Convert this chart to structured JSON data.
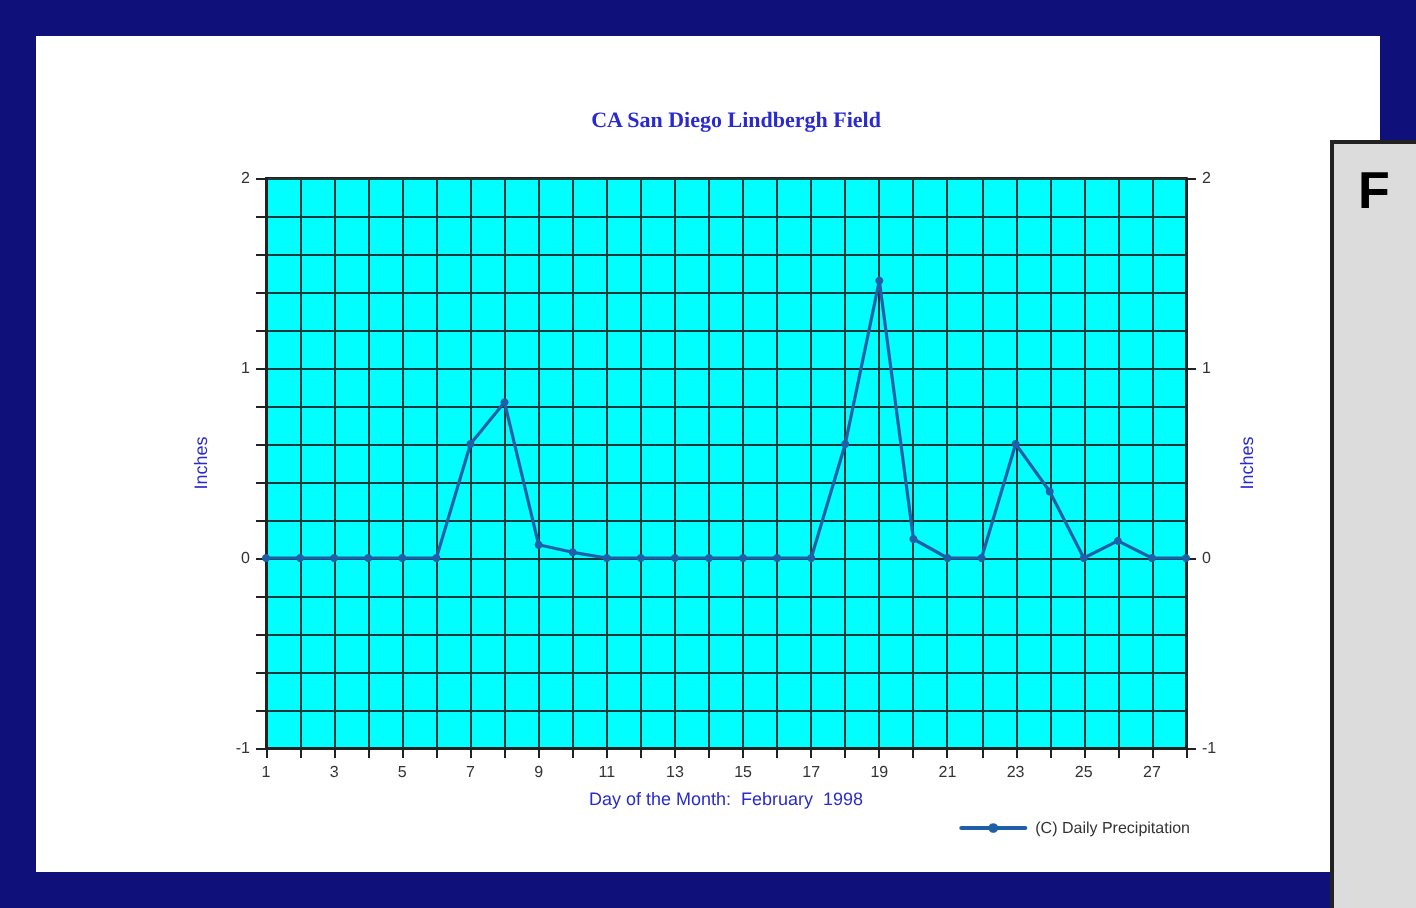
{
  "chart_data": {
    "type": "line",
    "title": "CA San Diego Lindbergh Field",
    "xlabel": "Day of the Month:  February  1998",
    "ylabel": "Inches",
    "y2label": "Inches",
    "x": [
      1,
      2,
      3,
      4,
      5,
      6,
      7,
      8,
      9,
      10,
      11,
      12,
      13,
      14,
      15,
      16,
      17,
      18,
      19,
      20,
      21,
      22,
      23,
      24,
      25,
      26,
      27,
      28
    ],
    "series": [
      {
        "name": "(C) Daily Precipitation",
        "color": "#1f5fa8",
        "values": [
          0,
          0,
          0,
          0,
          0,
          0,
          0.6,
          0.82,
          0.07,
          0.03,
          0,
          0,
          0,
          0,
          0,
          0,
          0,
          0.6,
          1.46,
          0.1,
          0,
          0,
          0.6,
          0.35,
          0,
          0.09,
          0,
          0
        ]
      }
    ],
    "xlim": [
      1,
      28
    ],
    "xticks": [
      1,
      {
        "value": 2,
        "label": null
      },
      3,
      {
        "value": 4,
        "label": null
      },
      5,
      {
        "value": 6,
        "label": null
      },
      7,
      {
        "value": 8,
        "label": null
      },
      9,
      {
        "value": 10,
        "label": null
      },
      11,
      {
        "value": 12,
        "label": null
      },
      13,
      {
        "value": 14,
        "label": null
      },
      15,
      {
        "value": 16,
        "label": null
      },
      17,
      {
        "value": 18,
        "label": null
      },
      19,
      {
        "value": 20,
        "label": null
      },
      21,
      {
        "value": 22,
        "label": null
      },
      23,
      {
        "value": 24,
        "label": null
      },
      25,
      {
        "value": 26,
        "label": null
      },
      27,
      {
        "value": 28,
        "label": null
      }
    ],
    "ylim": [
      -1,
      2
    ],
    "yticks": [
      -1,
      {
        "value": -0.8,
        "label": null
      },
      {
        "value": -0.6,
        "label": null
      },
      {
        "value": -0.4,
        "label": null
      },
      {
        "value": -0.2,
        "label": null
      },
      0,
      {
        "value": 0.2,
        "label": null
      },
      {
        "value": 0.4,
        "label": null
      },
      {
        "value": 0.6,
        "label": null
      },
      {
        "value": 0.8,
        "label": null
      },
      1,
      {
        "value": 1.2,
        "label": null
      },
      {
        "value": 1.4,
        "label": null
      },
      {
        "value": 1.6,
        "label": null
      },
      {
        "value": 1.8,
        "label": null
      },
      2
    ],
    "y2lim": [
      -1,
      2
    ],
    "y2ticks": [
      -1,
      0,
      1,
      2
    ],
    "grid": true,
    "legend": "bottom right",
    "marker": "circle",
    "line_style": "solid",
    "annotations": [
      "F"
    ]
  }
}
